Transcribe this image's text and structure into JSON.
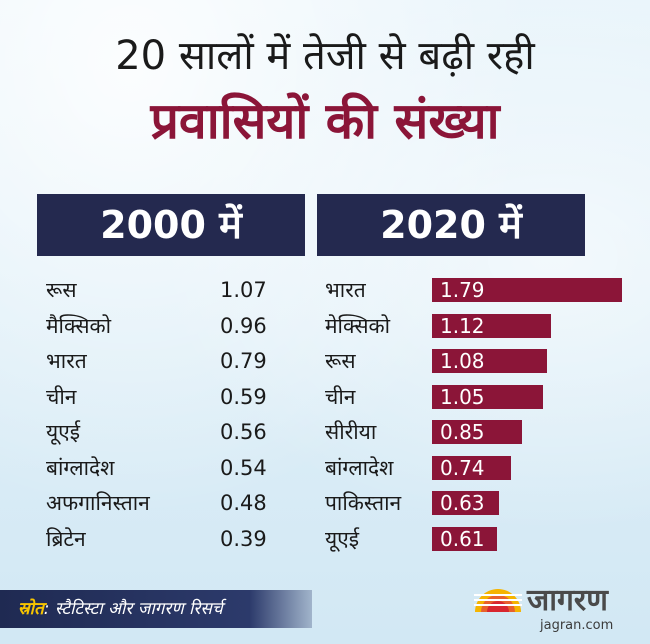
{
  "title_line1": "20 सालों में तेजी से बढ़ी रही",
  "title_line2": "प्रवासियों की संख्या",
  "source_label": "स्रोत",
  "source_text": ": स्टैटिस्टा और जागरण रिसर्च",
  "logo": {
    "name": "जागरण",
    "url": "jagran.com"
  },
  "colors": {
    "accent": "#8b1538",
    "header_bg": "#24294f",
    "source_label": "#f7c500"
  },
  "chart_data": [
    {
      "type": "table",
      "title": "2000 में",
      "categories": [
        "रूस",
        "मैक्सिको",
        "भारत",
        "चीन",
        "यूएई",
        "बांग्लादेश",
        "अफगानिस्तान",
        "ब्रिटेन"
      ],
      "values": [
        "1.07",
        "0.96",
        "0.79",
        "0.59",
        "0.56",
        "0.54",
        "0.48",
        "0.39"
      ]
    },
    {
      "type": "bar",
      "title": "2020 में",
      "categories": [
        "भारत",
        "मेक्सिको",
        "रूस",
        "चीन",
        "सीरीया",
        "बांग्लादेश",
        "पाकिस्तान",
        "यूएई"
      ],
      "values": [
        "1.79",
        "1.12",
        "1.08",
        "1.05",
        "0.85",
        "0.74",
        "0.63",
        "0.61"
      ],
      "xlim": [
        0,
        1.79
      ]
    }
  ]
}
